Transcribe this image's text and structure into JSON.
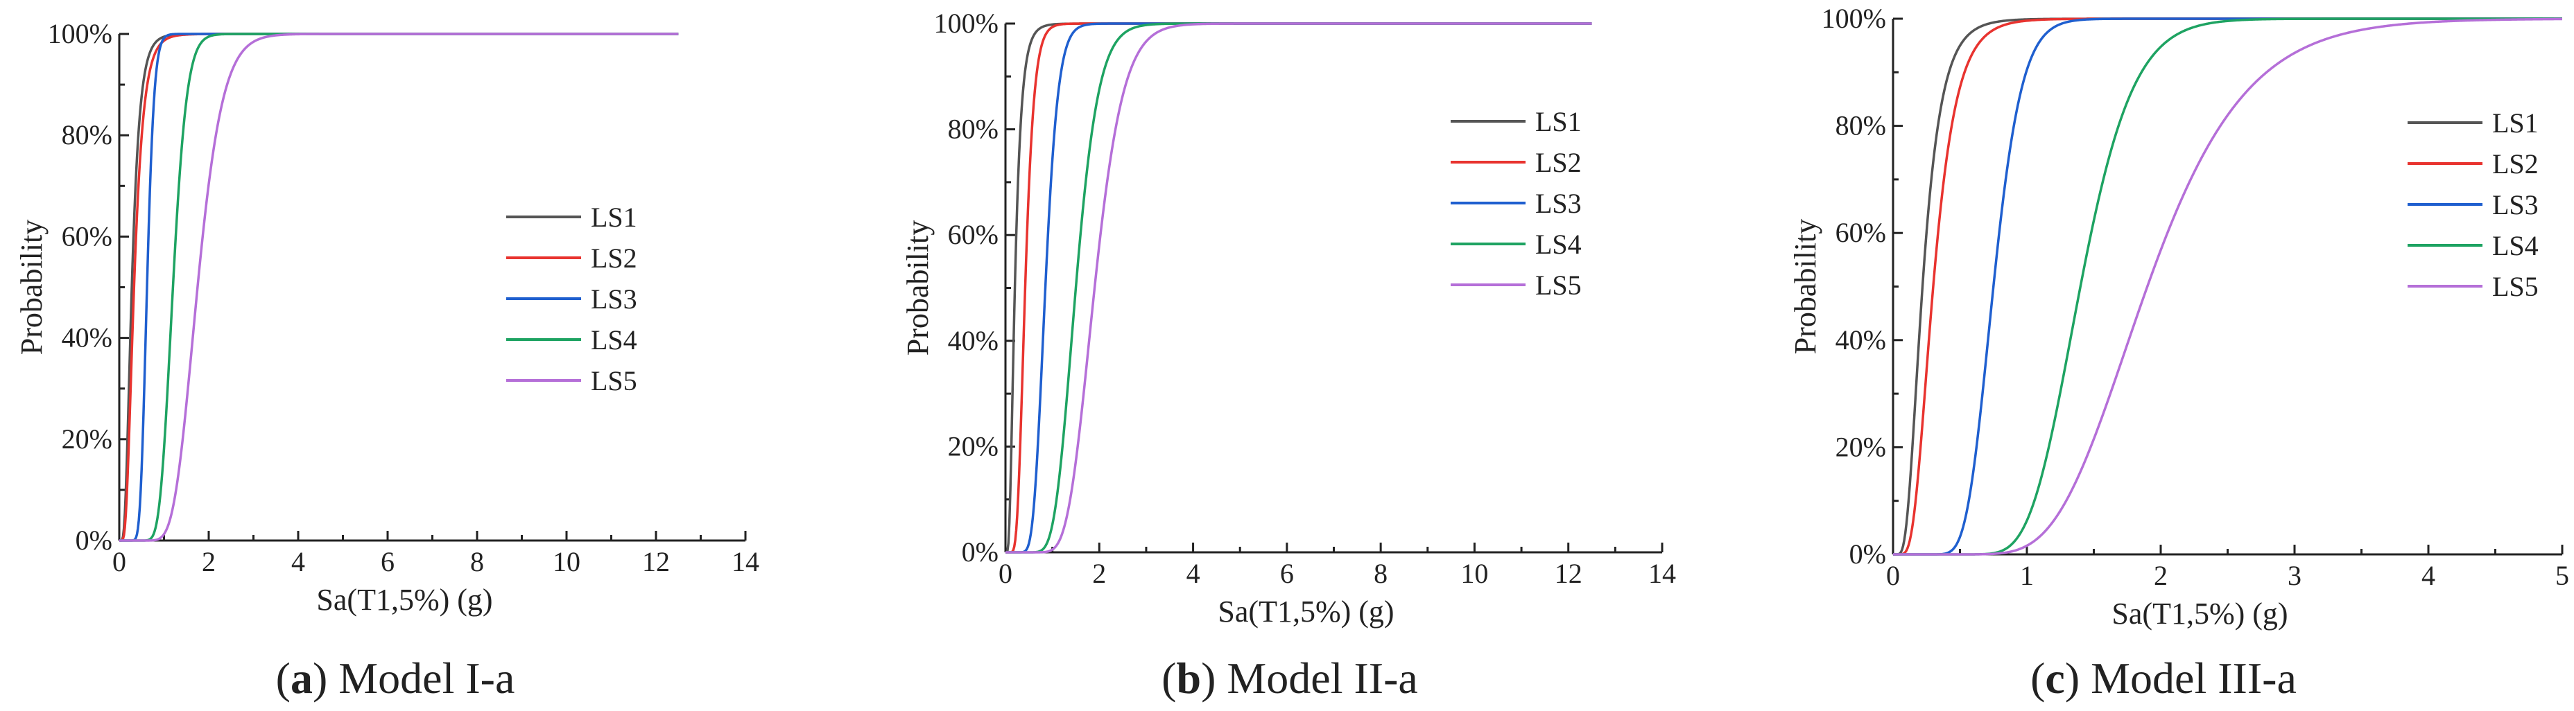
{
  "chart_data": [
    {
      "type": "line",
      "caption": {
        "letter": "(a)",
        "text": " Model I-a"
      },
      "xlabel": "Sa(T1,5%) (g)",
      "ylabel": "Probability",
      "xlim": [
        0,
        14
      ],
      "ylim": [
        0,
        100
      ],
      "xticks": [
        "0",
        "2",
        "4",
        "6",
        "8",
        "10",
        "12",
        "14"
      ],
      "yticks": [
        "0%",
        "20%",
        "40%",
        "60%",
        "80%",
        "100%"
      ],
      "legend_position": "center-right",
      "x_max_data": 12.5,
      "series": [
        {
          "name": "LS1",
          "color": "#555555",
          "median": 0.28,
          "beta": 0.5
        },
        {
          "name": "LS2",
          "color": "#e8332f",
          "median": 0.33,
          "beta": 0.5
        },
        {
          "name": "LS3",
          "color": "#1f5fcf",
          "median": 0.62,
          "beta": 0.2
        },
        {
          "name": "LS4",
          "color": "#1ea362",
          "median": 1.2,
          "beta": 0.2
        },
        {
          "name": "LS5",
          "color": "#b56fd8",
          "median": 1.75,
          "beta": 0.25
        }
      ]
    },
    {
      "type": "line",
      "caption": {
        "letter": "(b)",
        "text": " Model II-a"
      },
      "xlabel": "Sa(T1,5%) (g)",
      "ylabel": "Probability",
      "xlim": [
        0,
        14
      ],
      "ylim": [
        0,
        100
      ],
      "xticks": [
        "0",
        "2",
        "4",
        "6",
        "8",
        "10",
        "12",
        "14"
      ],
      "yticks": [
        "0%",
        "20%",
        "40%",
        "60%",
        "80%",
        "100%"
      ],
      "legend_position": "center-right",
      "x_max_data": 12.5,
      "series": [
        {
          "name": "LS1",
          "color": "#555555",
          "median": 0.2,
          "beta": 0.55
        },
        {
          "name": "LS2",
          "color": "#e8332f",
          "median": 0.42,
          "beta": 0.35
        },
        {
          "name": "LS3",
          "color": "#1f5fcf",
          "median": 0.85,
          "beta": 0.25
        },
        {
          "name": "LS4",
          "color": "#1ea362",
          "median": 1.5,
          "beta": 0.25
        },
        {
          "name": "LS5",
          "color": "#b56fd8",
          "median": 1.9,
          "beta": 0.25
        }
      ]
    },
    {
      "type": "line",
      "caption": {
        "letter": "(c)",
        "text": " Model III-a"
      },
      "xlabel": "Sa(T1,5%) (g)",
      "ylabel": "Probability",
      "xlim": [
        0,
        5
      ],
      "ylim": [
        0,
        100
      ],
      "xticks": [
        "0",
        "1",
        "2",
        "3",
        "4",
        "5"
      ],
      "yticks": [
        "0%",
        "20%",
        "40%",
        "60%",
        "80%",
        "100%"
      ],
      "legend_position": "top-right",
      "x_max_data": 5,
      "series": [
        {
          "name": "LS1",
          "color": "#555555",
          "median": 0.22,
          "beta": 0.5
        },
        {
          "name": "LS2",
          "color": "#e8332f",
          "median": 0.3,
          "beta": 0.45
        },
        {
          "name": "LS3",
          "color": "#1f5fcf",
          "median": 0.75,
          "beta": 0.22
        },
        {
          "name": "LS4",
          "color": "#1ea362",
          "median": 1.4,
          "beta": 0.22
        },
        {
          "name": "LS5",
          "color": "#b56fd8",
          "median": 1.9,
          "beta": 0.3
        }
      ]
    }
  ]
}
